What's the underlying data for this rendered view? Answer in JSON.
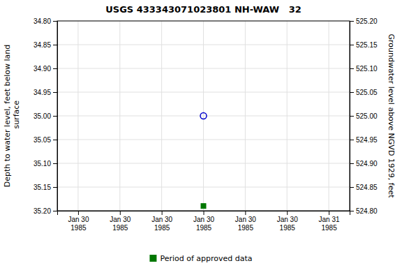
{
  "chart_data": {
    "type": "scatter",
    "title": "USGS 433343071023801 NH-WAW   32",
    "y_label": "Depth to water level, feet below land\n surface",
    "y2_label": "Groundwater level above NGVD 1929, feet",
    "categories": [
      "Jan 30\n1985",
      "Jan 30\n1985",
      "Jan 30\n1985",
      "Jan 30\n1985",
      "Jan 30\n1985",
      "Jan 30\n1985",
      "Jan 31\n1985"
    ],
    "series": [
      {
        "color": "#0000cc",
        "marker": "open-circle",
        "values": [
          null,
          null,
          null,
          35.0,
          null,
          null,
          null
        ]
      },
      {
        "name": "Period of approved data",
        "color": "#007700",
        "marker": "square",
        "values": [
          null,
          null,
          null,
          35.19,
          null,
          null,
          null
        ]
      }
    ],
    "ylim": [
      35.2,
      34.8
    ],
    "yticks": [
      {
        "value": 34.8,
        "label": "34.80"
      },
      {
        "value": 34.85,
        "label": "34.85"
      },
      {
        "value": 34.9,
        "label": "34.90"
      },
      {
        "value": 34.95,
        "label": "34.95"
      },
      {
        "value": 35.0,
        "label": "35.00"
      },
      {
        "value": 35.05,
        "label": "35.05"
      },
      {
        "value": 35.1,
        "label": "35.10"
      },
      {
        "value": 35.15,
        "label": "35.15"
      },
      {
        "value": 35.2,
        "label": "35.20"
      }
    ],
    "y2lim": [
      524.8,
      525.2
    ],
    "y2ticks": [
      {
        "value": 524.8,
        "label": "524.80"
      },
      {
        "value": 524.85,
        "label": "524.85"
      },
      {
        "value": 524.9,
        "label": "524.90"
      },
      {
        "value": 524.95,
        "label": "524.95"
      },
      {
        "value": 525.0,
        "label": "525.00"
      },
      {
        "value": 525.05,
        "label": "525.05"
      },
      {
        "value": 525.1,
        "label": "525.10"
      },
      {
        "value": 525.15,
        "label": "525.15"
      },
      {
        "value": 525.2,
        "label": "525.20"
      }
    ],
    "grid": true,
    "legend": "bottom"
  }
}
